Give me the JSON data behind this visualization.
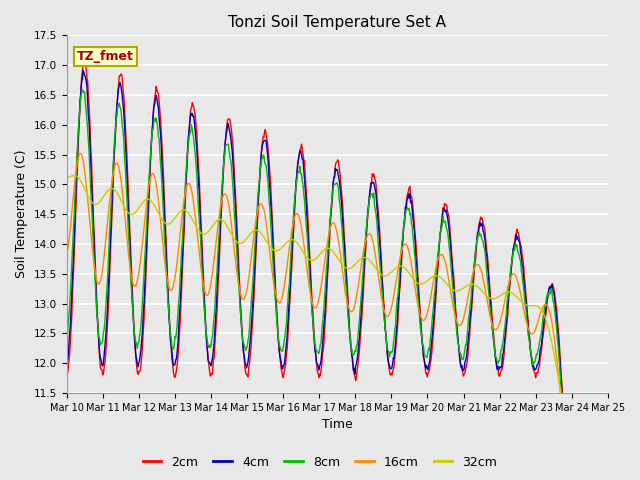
{
  "title": "Tonzi Soil Temperature Set A",
  "xlabel": "Time",
  "ylabel": "Soil Temperature (C)",
  "ylim": [
    11.5,
    17.5
  ],
  "series_colors": [
    "#ff0000",
    "#0000bb",
    "#00bb00",
    "#ff8800",
    "#cccc00"
  ],
  "series_labels": [
    "2cm",
    "4cm",
    "8cm",
    "16cm",
    "32cm"
  ],
  "annotation_text": "TZ_fmet",
  "annotation_color": "#aa0000",
  "annotation_bg": "#ffffcc",
  "annotation_border": "#aaaa00",
  "plot_bg": "#e8e8e8",
  "fig_bg": "#e8e8e8",
  "grid_color": "#ffffff",
  "n_points": 720,
  "n_days": 15
}
